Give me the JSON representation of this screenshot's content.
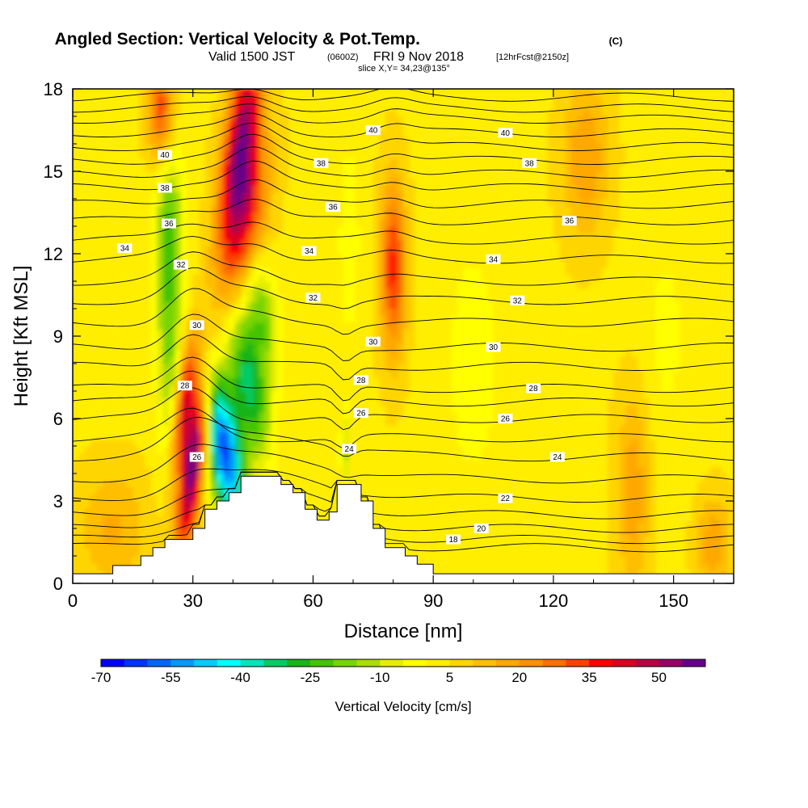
{
  "chart_data": {
    "type": "heatmap",
    "title": {
      "main": "Angled Section: Vertical Velocity & Pot.Temp.",
      "unit_tag": "(C)"
    },
    "subtitle": {
      "valid_prefix": "Valid 1500 JST",
      "zulu": "(0600Z)",
      "date": "FRI 9 Nov 2018",
      "forecast": "[12hrFcst@2150z]"
    },
    "slice_label": "slice X,Y= 34,23@135°",
    "xlabel": "Distance [nm]",
    "ylabel": "Height [Kft MSL]",
    "xlim": [
      0,
      165
    ],
    "ylim": [
      0,
      18
    ],
    "x_ticks": [
      0,
      30,
      60,
      90,
      120,
      150
    ],
    "x_tick_labels": [
      "0",
      "30",
      "60",
      "90",
      "120",
      "150"
    ],
    "y_ticks": [
      0,
      3,
      6,
      9,
      12,
      15,
      18
    ],
    "y_tick_labels": [
      "0",
      "3",
      "6",
      "9",
      "12",
      "15",
      "18"
    ],
    "colorbar": {
      "label": "Vertical Velocity [cm/s]",
      "min": -70,
      "max": 55,
      "step": 5,
      "tick_values": [
        -70,
        -55,
        -40,
        -25,
        -10,
        5,
        20,
        35,
        50
      ],
      "tick_labels": [
        "-70",
        "-55",
        "-40",
        "-25",
        "-10",
        "5",
        "20",
        "35",
        "50"
      ],
      "colors": [
        "#0000ff",
        "#0033ff",
        "#0066ff",
        "#0099ff",
        "#00ccff",
        "#00ffff",
        "#00e6b8",
        "#00cc66",
        "#19b419",
        "#44c400",
        "#77d400",
        "#aadd00",
        "#e6ee00",
        "#ffff00",
        "#ffee00",
        "#ffd500",
        "#ffbe00",
        "#ffa800",
        "#ff9000",
        "#ff6e00",
        "#ff4000",
        "#ff0000",
        "#dd0022",
        "#bb0044",
        "#990066",
        "#660088"
      ]
    },
    "terrain_profile": [
      [
        0,
        0.35
      ],
      [
        10,
        0.35
      ],
      [
        10,
        0.65
      ],
      [
        17,
        0.65
      ],
      [
        17,
        1.0
      ],
      [
        20,
        1.0
      ],
      [
        20,
        1.3
      ],
      [
        23,
        1.3
      ],
      [
        23,
        1.6
      ],
      [
        30,
        1.6
      ],
      [
        30,
        2.0
      ],
      [
        33,
        2.0
      ],
      [
        33,
        2.7
      ],
      [
        36,
        2.7
      ],
      [
        36,
        3.0
      ],
      [
        39,
        3.0
      ],
      [
        39,
        3.3
      ],
      [
        42,
        3.3
      ],
      [
        42,
        3.9
      ],
      [
        52,
        3.9
      ],
      [
        52,
        3.6
      ],
      [
        55,
        3.6
      ],
      [
        55,
        3.3
      ],
      [
        58,
        3.3
      ],
      [
        58,
        2.7
      ],
      [
        61,
        2.7
      ],
      [
        61,
        2.3
      ],
      [
        64,
        2.3
      ],
      [
        64,
        2.6
      ],
      [
        66,
        2.6
      ],
      [
        66,
        3.6
      ],
      [
        72,
        3.6
      ],
      [
        72,
        3.0
      ],
      [
        75,
        3.0
      ],
      [
        75,
        2.0
      ],
      [
        78,
        2.0
      ],
      [
        78,
        1.3
      ],
      [
        83,
        1.3
      ],
      [
        83,
        1.0
      ],
      [
        86,
        1.0
      ],
      [
        86,
        0.7
      ],
      [
        90,
        0.7
      ],
      [
        90,
        0.35
      ],
      [
        165,
        0.35
      ]
    ],
    "isentrope_labels": [
      {
        "value": "40",
        "x": 23,
        "y": 15.6
      },
      {
        "value": "40",
        "x": 75,
        "y": 16.5
      },
      {
        "value": "40",
        "x": 108,
        "y": 16.4
      },
      {
        "value": "38",
        "x": 23,
        "y": 14.4
      },
      {
        "value": "38",
        "x": 62,
        "y": 15.3
      },
      {
        "value": "38",
        "x": 114,
        "y": 15.3
      },
      {
        "value": "36",
        "x": 24,
        "y": 13.1
      },
      {
        "value": "36",
        "x": 65,
        "y": 13.7
      },
      {
        "value": "36",
        "x": 124,
        "y": 13.2
      },
      {
        "value": "34",
        "x": 13,
        "y": 12.2
      },
      {
        "value": "34",
        "x": 59,
        "y": 12.1
      },
      {
        "value": "34",
        "x": 105,
        "y": 11.8
      },
      {
        "value": "32",
        "x": 27,
        "y": 11.6
      },
      {
        "value": "32",
        "x": 60,
        "y": 10.4
      },
      {
        "value": "32",
        "x": 111,
        "y": 10.3
      },
      {
        "value": "30",
        "x": 31,
        "y": 9.4
      },
      {
        "value": "30",
        "x": 75,
        "y": 8.8
      },
      {
        "value": "30",
        "x": 105,
        "y": 8.6
      },
      {
        "value": "28",
        "x": 28,
        "y": 7.2
      },
      {
        "value": "28",
        "x": 72,
        "y": 7.4
      },
      {
        "value": "28",
        "x": 115,
        "y": 7.1
      },
      {
        "value": "26",
        "x": 31,
        "y": 4.6
      },
      {
        "value": "26",
        "x": 72,
        "y": 6.2
      },
      {
        "value": "26",
        "x": 108,
        "y": 6.0
      },
      {
        "value": "24",
        "x": 69,
        "y": 4.9
      },
      {
        "value": "24",
        "x": 121,
        "y": 4.6
      },
      {
        "value": "22",
        "x": 108,
        "y": 3.1
      },
      {
        "value": "20",
        "x": 102,
        "y": 2.0
      },
      {
        "value": "18",
        "x": 95,
        "y": 1.6
      }
    ],
    "isentrope_levels": [
      {
        "theta": 18,
        "y": 1.3
      },
      {
        "theta": 19,
        "y": 1.6
      },
      {
        "theta": 20,
        "y": 2.0
      },
      {
        "theta": 21,
        "y": 2.5
      },
      {
        "theta": 22,
        "y": 3.1
      },
      {
        "theta": 23,
        "y": 3.8
      },
      {
        "theta": 24,
        "y": 4.6
      },
      {
        "theta": 25,
        "y": 5.3
      },
      {
        "theta": 26,
        "y": 6.0
      },
      {
        "theta": 27,
        "y": 6.6
      },
      {
        "theta": 28,
        "y": 7.1
      },
      {
        "theta": 29,
        "y": 7.9
      },
      {
        "theta": 30,
        "y": 8.6
      },
      {
        "theta": 31,
        "y": 9.5
      },
      {
        "theta": 32,
        "y": 10.3
      },
      {
        "theta": 33,
        "y": 11.0
      },
      {
        "theta": 34,
        "y": 11.8
      },
      {
        "theta": 35,
        "y": 12.5
      },
      {
        "theta": 36,
        "y": 13.2
      },
      {
        "theta": 37,
        "y": 13.8
      },
      {
        "theta": 38,
        "y": 14.4
      },
      {
        "theta": 39,
        "y": 14.9
      },
      {
        "theta": 40,
        "y": 15.4
      },
      {
        "theta": 41,
        "y": 15.9
      },
      {
        "theta": 42,
        "y": 16.4
      },
      {
        "theta": 43,
        "y": 16.9
      },
      {
        "theta": 44,
        "y": 17.3
      },
      {
        "theta": 45,
        "y": 17.7
      }
    ],
    "velocity_features": [
      {
        "x": 42,
        "y": 16.0,
        "sx": 3.0,
        "sy": 2.5,
        "value": 50,
        "tilt": 0.9
      },
      {
        "x": 43,
        "y": 13.0,
        "sx": 3.5,
        "sy": 2.0,
        "value": 30,
        "tilt": 1.1
      },
      {
        "x": 22,
        "y": 17.2,
        "sx": 2.2,
        "sy": 1.4,
        "value": 30,
        "tilt": 0
      },
      {
        "x": 80,
        "y": 11.5,
        "sx": 2.2,
        "sy": 2.2,
        "value": 32,
        "tilt": 0
      },
      {
        "x": 128,
        "y": 15.5,
        "sx": 4.0,
        "sy": 2.0,
        "value": 16,
        "tilt": 0
      },
      {
        "x": 30,
        "y": 4.3,
        "sx": 2.0,
        "sy": 2.2,
        "value": 55,
        "tilt": 0.9
      },
      {
        "x": 28,
        "y": 6.6,
        "sx": 1.8,
        "sy": 1.8,
        "value": 38,
        "tilt": 0.9
      },
      {
        "x": 38,
        "y": 4.8,
        "sx": 3.0,
        "sy": 2.0,
        "value": -65,
        "tilt": -0.9
      },
      {
        "x": 44,
        "y": 7.2,
        "sx": 3.0,
        "sy": 1.8,
        "value": -35,
        "tilt": -1.0
      },
      {
        "x": 47,
        "y": 9.8,
        "sx": 3.0,
        "sy": 1.6,
        "value": -22,
        "tilt": -0.8
      },
      {
        "x": 24,
        "y": 9.5,
        "sx": 2.2,
        "sy": 3.5,
        "value": -22,
        "tilt": 0
      },
      {
        "x": 24,
        "y": 13.5,
        "sx": 2.6,
        "sy": 2.0,
        "value": -14,
        "tilt": 0
      },
      {
        "x": 68,
        "y": 4.8,
        "sx": 0.8,
        "sy": 1.2,
        "value": -15,
        "tilt": 0
      },
      {
        "x": 69,
        "y": 12.5,
        "sx": 1.8,
        "sy": 2.5,
        "value": -9,
        "tilt": 0
      },
      {
        "x": 100,
        "y": 8.0,
        "sx": 6.0,
        "sy": 4.0,
        "value": -6,
        "tilt": 0
      },
      {
        "x": 148,
        "y": 9.0,
        "sx": 5.0,
        "sy": 3.5,
        "value": -5,
        "tilt": 0
      },
      {
        "x": 140,
        "y": 3.5,
        "sx": 3.0,
        "sy": 2.5,
        "value": 15,
        "tilt": 0
      },
      {
        "x": 160,
        "y": 1.5,
        "sx": 3.0,
        "sy": 1.2,
        "value": 15,
        "tilt": 0
      },
      {
        "x": 10,
        "y": 2.0,
        "sx": 6.0,
        "sy": 1.5,
        "value": 12,
        "tilt": 0
      }
    ]
  }
}
